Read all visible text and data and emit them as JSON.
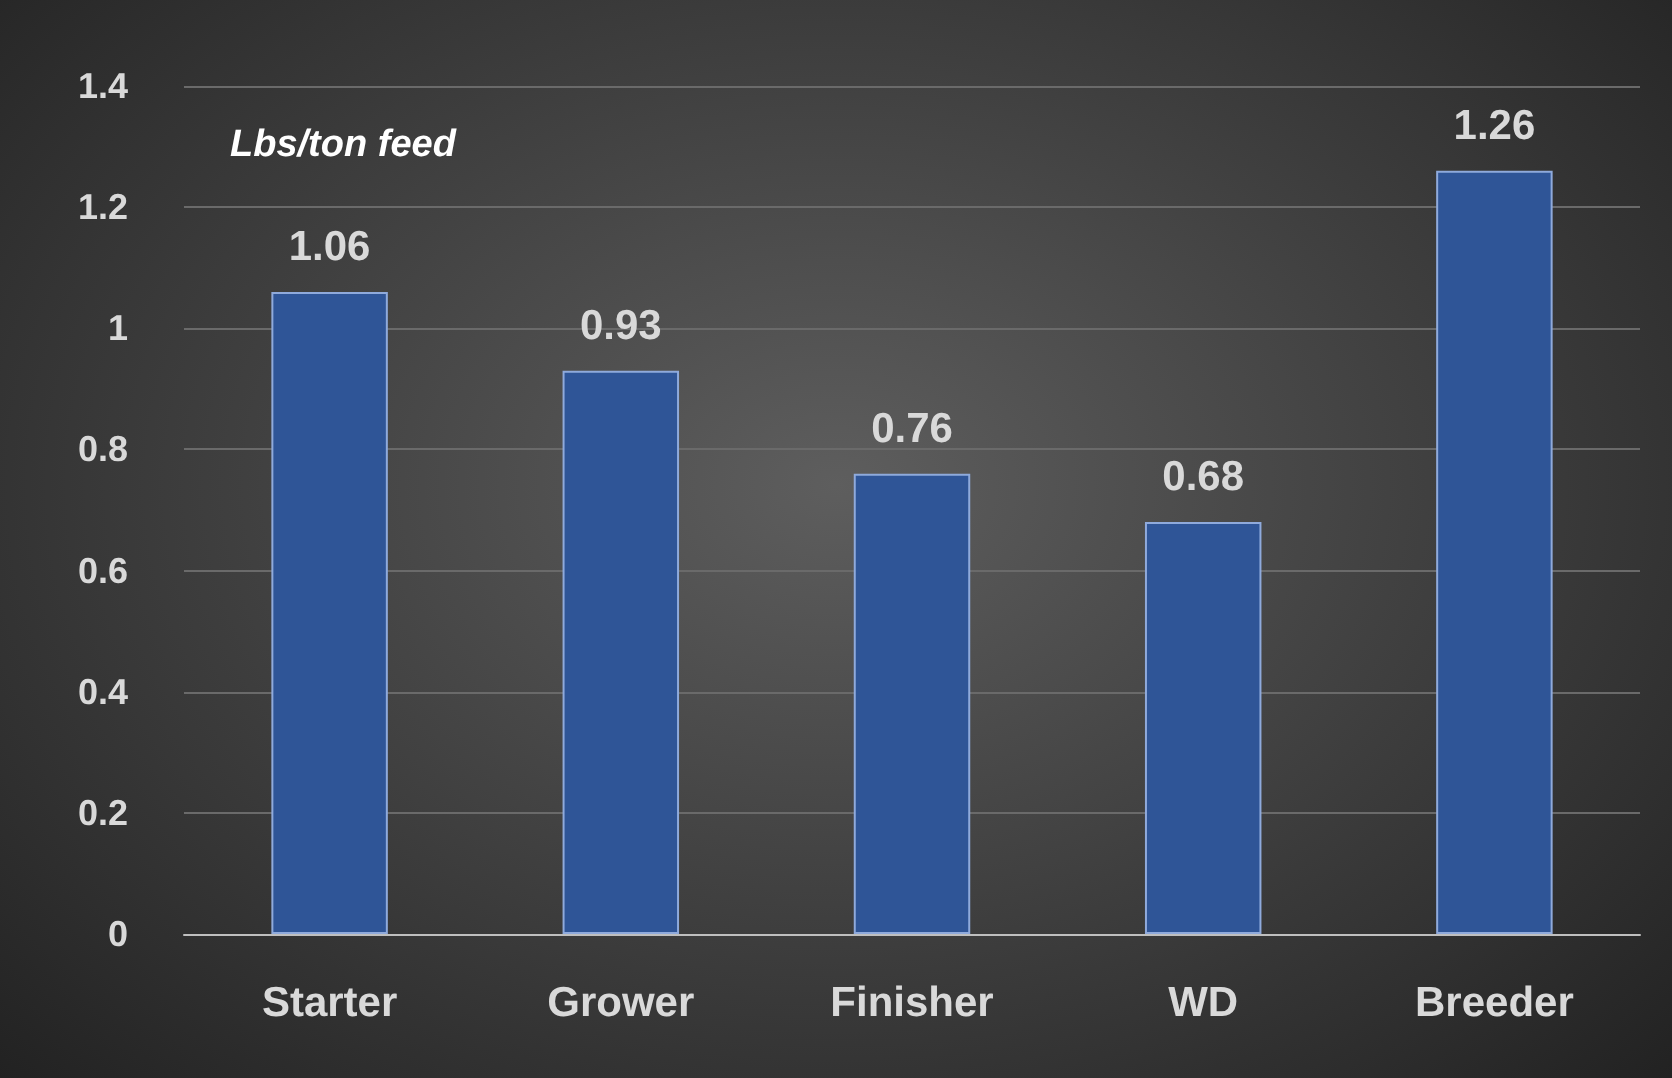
{
  "chart_data": {
    "type": "bar",
    "ylabel": "Lbs/ton feed",
    "categories": [
      "Starter",
      "Grower",
      "Finisher",
      "WD",
      "Breeder"
    ],
    "values": [
      1.06,
      0.93,
      0.76,
      0.68,
      1.26
    ],
    "color": "#2f5597",
    "ylim": [
      0,
      1.4
    ],
    "yticks": [
      0,
      0.2,
      0.4,
      0.6,
      0.8,
      1,
      1.2,
      1.4
    ],
    "grid": "y",
    "data_labels": true
  }
}
